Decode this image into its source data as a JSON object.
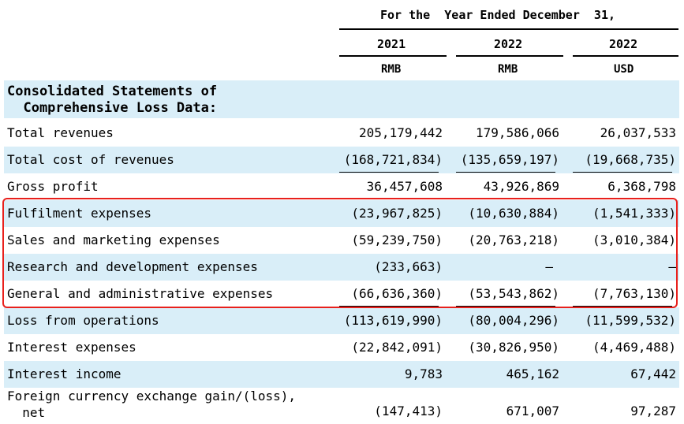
{
  "header": {
    "period": "For the  Year Ended December  31,",
    "years": [
      "2021",
      "2022",
      "2022"
    ],
    "currencies": [
      "RMB",
      "RMB",
      "USD"
    ]
  },
  "section_title": "Consolidated Statements of\n  Comprehensive Loss Data:",
  "rows": [
    {
      "label": "Total revenues",
      "v2021": "205,179,442",
      "v2022": "179,586,066",
      "usd": "26,037,533"
    },
    {
      "label": "Total cost of revenues",
      "v2021": "(168,721,834)",
      "v2022": "(135,659,197)",
      "usd": "(19,668,735)"
    },
    {
      "label": "Gross profit",
      "v2021": "36,457,608",
      "v2022": "43,926,869",
      "usd": "6,368,798"
    },
    {
      "label": "Fulfilment expenses",
      "v2021": "(23,967,825)",
      "v2022": "(10,630,884)",
      "usd": "(1,541,333)"
    },
    {
      "label": "Sales and marketing expenses",
      "v2021": "(59,239,750)",
      "v2022": "(20,763,218)",
      "usd": "(3,010,384)"
    },
    {
      "label": "Research and development expenses",
      "v2021": "(233,663)",
      "v2022": "—",
      "usd": "—"
    },
    {
      "label": "General and administrative expenses",
      "v2021": "(66,636,360)",
      "v2022": "(53,543,862)",
      "usd": "(7,763,130)"
    },
    {
      "label": "Loss from operations",
      "v2021": "(113,619,990)",
      "v2022": "(80,004,296)",
      "usd": "(11,599,532)"
    },
    {
      "label": "Interest expenses",
      "v2021": "(22,842,091)",
      "v2022": "(30,826,950)",
      "usd": "(4,469,488)"
    },
    {
      "label": "Interest income",
      "v2021": "9,783",
      "v2022": "465,162",
      "usd": "67,442"
    }
  ],
  "last_row": {
    "label": "Foreign currency exchange gain/(loss),\n  net",
    "v2021": "(147,413)",
    "v2022": "671,007",
    "usd": "97,287"
  },
  "colors": {
    "shade": "#d9eef8",
    "highlight": "#e8201c"
  }
}
